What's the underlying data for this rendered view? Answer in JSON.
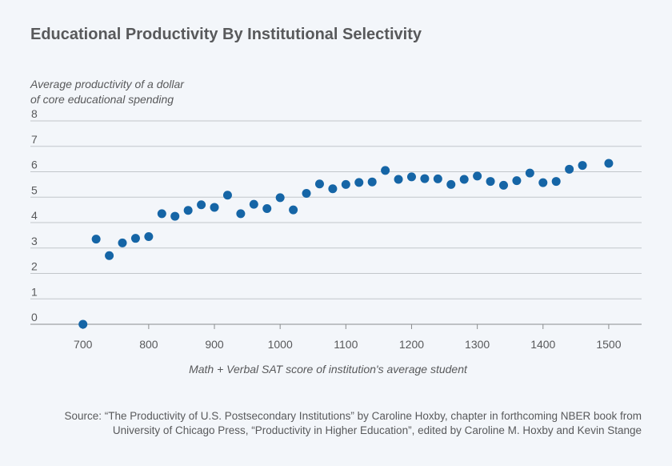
{
  "chart_data": {
    "type": "scatter",
    "title": "Educational Productivity By Institutional Selectivity",
    "ylabel_lines": [
      "Average productivity of a dollar",
      "of core educational spending"
    ],
    "xlabel": "Math + Verbal SAT score of institution's average student",
    "xlim": [
      620,
      1550
    ],
    "ylim": [
      0,
      8
    ],
    "xticks": [
      700,
      800,
      900,
      1000,
      1100,
      1200,
      1300,
      1400,
      1500
    ],
    "yticks": [
      0,
      1,
      2,
      3,
      4,
      5,
      6,
      7,
      8
    ],
    "grid": "horizontal",
    "point_color": "#1565a6",
    "points": [
      {
        "x": 700,
        "y": 0.0
      },
      {
        "x": 720,
        "y": 3.35
      },
      {
        "x": 740,
        "y": 2.7
      },
      {
        "x": 760,
        "y": 3.2
      },
      {
        "x": 780,
        "y": 3.38
      },
      {
        "x": 800,
        "y": 3.45
      },
      {
        "x": 820,
        "y": 4.35
      },
      {
        "x": 840,
        "y": 4.25
      },
      {
        "x": 860,
        "y": 4.48
      },
      {
        "x": 880,
        "y": 4.7
      },
      {
        "x": 900,
        "y": 4.6
      },
      {
        "x": 920,
        "y": 5.08
      },
      {
        "x": 940,
        "y": 4.35
      },
      {
        "x": 960,
        "y": 4.72
      },
      {
        "x": 980,
        "y": 4.55
      },
      {
        "x": 1000,
        "y": 4.98
      },
      {
        "x": 1020,
        "y": 4.5
      },
      {
        "x": 1040,
        "y": 5.15
      },
      {
        "x": 1060,
        "y": 5.52
      },
      {
        "x": 1080,
        "y": 5.33
      },
      {
        "x": 1100,
        "y": 5.5
      },
      {
        "x": 1120,
        "y": 5.58
      },
      {
        "x": 1140,
        "y": 5.6
      },
      {
        "x": 1160,
        "y": 6.05
      },
      {
        "x": 1180,
        "y": 5.7
      },
      {
        "x": 1200,
        "y": 5.8
      },
      {
        "x": 1220,
        "y": 5.73
      },
      {
        "x": 1240,
        "y": 5.72
      },
      {
        "x": 1260,
        "y": 5.5
      },
      {
        "x": 1280,
        "y": 5.7
      },
      {
        "x": 1300,
        "y": 5.83
      },
      {
        "x": 1320,
        "y": 5.62
      },
      {
        "x": 1340,
        "y": 5.47
      },
      {
        "x": 1360,
        "y": 5.65
      },
      {
        "x": 1380,
        "y": 5.95
      },
      {
        "x": 1400,
        "y": 5.57
      },
      {
        "x": 1420,
        "y": 5.62
      },
      {
        "x": 1440,
        "y": 6.1
      },
      {
        "x": 1460,
        "y": 6.25
      },
      {
        "x": 1500,
        "y": 6.33
      }
    ]
  },
  "source_lines": [
    "Source: “The Productivity of U.S. Postsecondary Institutions” by Caroline Hoxby, chapter in forthcoming NBER book from",
    "University of Chicago Press, “Productivity in Higher Education”, edited by Caroline M. Hoxby and Kevin Stange"
  ]
}
